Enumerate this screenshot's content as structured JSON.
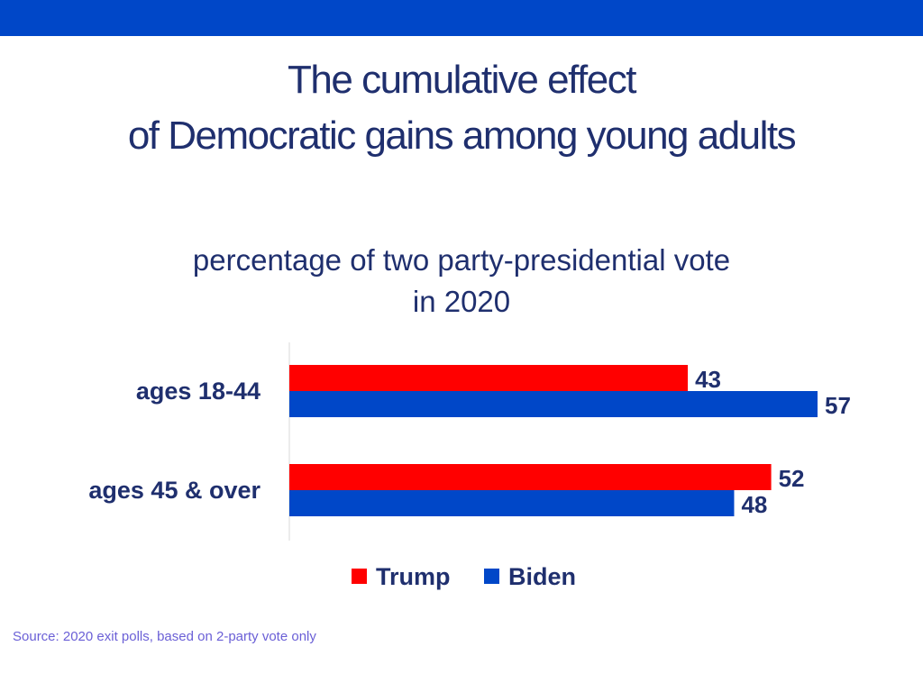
{
  "colors": {
    "top_bar": "#0047c8",
    "title": "#1f2f6e",
    "trump": "#ff0000",
    "biden": "#0047c8",
    "axis": "#d9d9d9",
    "source": "#6a5fd6"
  },
  "title": {
    "line1": "The cumulative effect",
    "line2": "of Democratic gains among young adults"
  },
  "subtitle": {
    "line1": "percentage of two party-presidential vote",
    "line2": "in 2020"
  },
  "chart_data": {
    "type": "bar",
    "orientation": "horizontal",
    "categories": [
      "ages 18-44",
      "ages 45 & over"
    ],
    "series": [
      {
        "name": "Trump",
        "values": [
          43,
          52
        ]
      },
      {
        "name": "Biden",
        "values": [
          57,
          48
        ]
      }
    ],
    "xlim": [
      0,
      57
    ],
    "grid": false,
    "legend": "bottom-center",
    "title": "percentage of two party-presidential vote in 2020"
  },
  "source": "Source: 2020 exit polls, based on 2-party vote only"
}
